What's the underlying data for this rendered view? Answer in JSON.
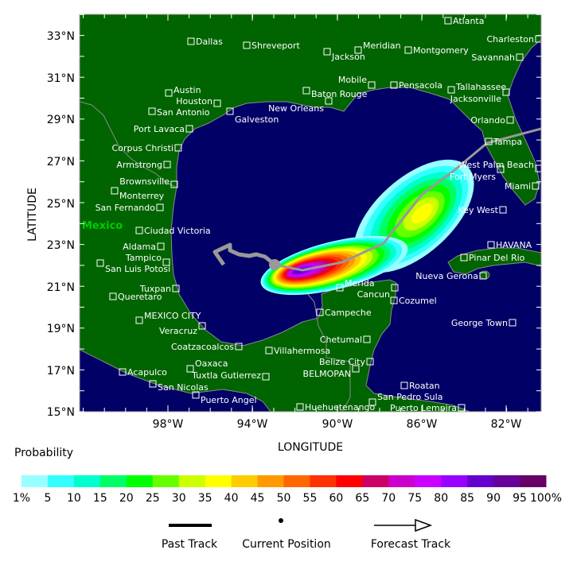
{
  "map": {
    "xlabel": "LONGITUDE",
    "ylabel": "LATITUDE",
    "lon_ticks": [
      "98°W",
      "94°W",
      "90°W",
      "86°W",
      "82°W"
    ],
    "lat_ticks": [
      "33°N",
      "31°N",
      "29°N",
      "27°N",
      "25°N",
      "23°N",
      "21°N",
      "19°N",
      "17°N",
      "15°N"
    ],
    "country_label": "Mexico",
    "colors": {
      "land": "#006400",
      "water": "#000066",
      "track": "#999999",
      "city": "#ffffff",
      "country": "#00cc00"
    },
    "cities": [
      "Atlanta",
      "Dallas",
      "Shreveport",
      "Jackson",
      "Meridian",
      "Montgomery",
      "Charleston",
      "Savannah",
      "Mobile",
      "Pensacola",
      "Tallahassee",
      "Jacksonville",
      "Baton Rouge",
      "New Orleans",
      "Austin",
      "Houston",
      "San Antonio",
      "Galveston",
      "Port Lavaca",
      "Orlando",
      "Corpus Christi",
      "Tampa",
      "Armstrong",
      "West Palm Beach",
      "Fort Myers",
      "Brownsville",
      "Monterrey",
      "Miami",
      "San Fernando",
      "Key West",
      "Ciudad Victoria",
      "Aldama",
      "HAVANA",
      "Tampico",
      "Pinar Del Rio",
      "San Luis Potosi",
      "Nueva Gerona",
      "Merida",
      "Cancun",
      "Tuxpan",
      "Cozumel",
      "Queretaro",
      "Campeche",
      "MEXICO CITY",
      "George Town",
      "Veracruz",
      "Coatzacoalcos",
      "Villahermosa",
      "Chetumal",
      "Belize City",
      "Oaxaca",
      "BELMOPAN",
      "Acapulco",
      "Tuxtla Gutierrez",
      "San Nicolas",
      "Roatan",
      "Puerto Angel",
      "San Pedro Sula",
      "Huehuetenango",
      "Puerto Lempira"
    ]
  },
  "legend": {
    "title": "Probability",
    "labels": [
      "1%",
      "5",
      "10",
      "15",
      "20",
      "25",
      "30",
      "35",
      "40",
      "45",
      "50",
      "55",
      "60",
      "65",
      "70",
      "75",
      "80",
      "85",
      "90",
      "95",
      "100%"
    ],
    "colors": [
      "#99ffff",
      "#33ffff",
      "#00ffcc",
      "#00ff66",
      "#00ff00",
      "#66ff00",
      "#ccff00",
      "#ffff00",
      "#ffcc00",
      "#ff9900",
      "#ff6600",
      "#ff3300",
      "#ff0000",
      "#cc0066",
      "#cc00cc",
      "#cc00ff",
      "#9900ff",
      "#6600cc",
      "#660099",
      "#660066"
    ],
    "past_track": "Past Track",
    "current_position": "Current Position",
    "forecast_track": "Forecast Track"
  }
}
